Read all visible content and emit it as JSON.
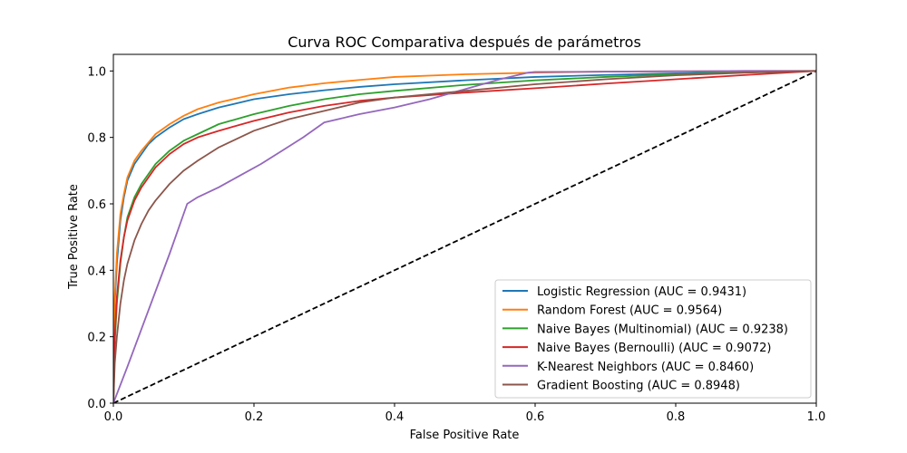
{
  "chart_data": {
    "type": "line",
    "title": "Curva ROC Comparativa después de parámetros",
    "xlabel": "False Positive Rate",
    "ylabel": "True Positive Rate",
    "xlim": [
      0.0,
      1.0
    ],
    "ylim": [
      0.0,
      1.05
    ],
    "x_ticks": [
      0.0,
      0.2,
      0.4,
      0.6,
      0.8,
      1.0
    ],
    "y_ticks": [
      0.0,
      0.2,
      0.4,
      0.6,
      0.8,
      1.0
    ],
    "x_tick_labels": [
      "0.0",
      "0.2",
      "0.4",
      "0.6",
      "0.8",
      "1.0"
    ],
    "y_tick_labels": [
      "0.0",
      "0.2",
      "0.4",
      "0.6",
      "0.8",
      "1.0"
    ],
    "grid": false,
    "legend_position": "lower-right",
    "series": [
      {
        "name": "Logistic Regression (AUC = 0.9431)",
        "color": "#1f77b4",
        "x": [
          0,
          0.002,
          0.005,
          0.01,
          0.015,
          0.02,
          0.03,
          0.04,
          0.05,
          0.06,
          0.08,
          0.1,
          0.12,
          0.15,
          0.2,
          0.25,
          0.3,
          0.35,
          0.4,
          0.5,
          0.6,
          0.7,
          0.8,
          0.9,
          1.0
        ],
        "y": [
          0,
          0.3,
          0.42,
          0.55,
          0.62,
          0.67,
          0.72,
          0.75,
          0.78,
          0.8,
          0.83,
          0.855,
          0.87,
          0.89,
          0.915,
          0.93,
          0.942,
          0.952,
          0.96,
          0.972,
          0.982,
          0.988,
          0.993,
          0.997,
          1.0
        ]
      },
      {
        "name": "Random Forest (AUC = 0.9564)",
        "color": "#ff7f0e",
        "x": [
          0,
          0.002,
          0.005,
          0.01,
          0.015,
          0.02,
          0.03,
          0.04,
          0.05,
          0.06,
          0.08,
          0.1,
          0.12,
          0.15,
          0.2,
          0.25,
          0.3,
          0.35,
          0.4,
          0.5,
          0.6,
          0.7,
          0.8,
          0.9,
          1.0
        ],
        "y": [
          0,
          0.32,
          0.45,
          0.57,
          0.63,
          0.68,
          0.73,
          0.76,
          0.785,
          0.81,
          0.84,
          0.865,
          0.885,
          0.905,
          0.93,
          0.95,
          0.963,
          0.973,
          0.982,
          0.99,
          0.995,
          0.998,
          0.999,
          1.0,
          1.0
        ]
      },
      {
        "name": "Naive Bayes (Multinomial) (AUC = 0.9238)",
        "color": "#2ca02c",
        "x": [
          0,
          0.002,
          0.005,
          0.01,
          0.015,
          0.02,
          0.03,
          0.04,
          0.05,
          0.06,
          0.08,
          0.1,
          0.12,
          0.15,
          0.2,
          0.25,
          0.3,
          0.35,
          0.4,
          0.5,
          0.6,
          0.7,
          0.8,
          0.9,
          1.0
        ],
        "y": [
          0,
          0.18,
          0.3,
          0.42,
          0.5,
          0.56,
          0.62,
          0.66,
          0.69,
          0.72,
          0.76,
          0.79,
          0.81,
          0.84,
          0.87,
          0.895,
          0.915,
          0.93,
          0.94,
          0.958,
          0.972,
          0.982,
          0.99,
          0.996,
          1.0
        ]
      },
      {
        "name": "Naive Bayes (Bernoulli) (AUC = 0.9072)",
        "color": "#d62728",
        "x": [
          0,
          0.002,
          0.005,
          0.01,
          0.015,
          0.02,
          0.03,
          0.04,
          0.05,
          0.06,
          0.08,
          0.1,
          0.12,
          0.15,
          0.2,
          0.25,
          0.3,
          0.35,
          0.4,
          0.5,
          0.6,
          0.7,
          0.8,
          0.9,
          1.0
        ],
        "y": [
          0,
          0.2,
          0.32,
          0.43,
          0.5,
          0.55,
          0.61,
          0.65,
          0.68,
          0.71,
          0.75,
          0.78,
          0.8,
          0.82,
          0.85,
          0.875,
          0.895,
          0.91,
          0.92,
          0.935,
          0.948,
          0.962,
          0.975,
          0.988,
          1.0
        ]
      },
      {
        "name": "K-Nearest Neighbors (AUC = 0.8460)",
        "color": "#9467bd",
        "x": [
          0,
          0.02,
          0.05,
          0.08,
          0.105,
          0.12,
          0.15,
          0.18,
          0.21,
          0.24,
          0.27,
          0.3,
          0.32,
          0.35,
          0.4,
          0.45,
          0.5,
          0.55,
          0.59,
          0.6,
          0.7,
          0.8,
          0.9,
          1.0
        ],
        "y": [
          0,
          0.11,
          0.28,
          0.45,
          0.6,
          0.62,
          0.65,
          0.685,
          0.72,
          0.76,
          0.8,
          0.845,
          0.855,
          0.87,
          0.89,
          0.915,
          0.945,
          0.975,
          0.995,
          0.997,
          0.998,
          0.999,
          1.0,
          1.0
        ]
      },
      {
        "name": "Gradient Boosting (AUC = 0.8948)",
        "color": "#8c564b",
        "x": [
          0,
          0.002,
          0.005,
          0.01,
          0.015,
          0.02,
          0.03,
          0.04,
          0.05,
          0.06,
          0.08,
          0.1,
          0.12,
          0.15,
          0.2,
          0.25,
          0.3,
          0.35,
          0.4,
          0.5,
          0.6,
          0.7,
          0.8,
          0.9,
          1.0
        ],
        "y": [
          0,
          0.12,
          0.2,
          0.3,
          0.37,
          0.42,
          0.49,
          0.54,
          0.58,
          0.61,
          0.66,
          0.7,
          0.73,
          0.77,
          0.82,
          0.855,
          0.88,
          0.905,
          0.92,
          0.94,
          0.96,
          0.975,
          0.987,
          0.995,
          1.0
        ]
      }
    ],
    "reference_line": {
      "x": [
        0,
        1
      ],
      "y": [
        0,
        1
      ],
      "color": "#000000",
      "style": "dashed"
    }
  }
}
